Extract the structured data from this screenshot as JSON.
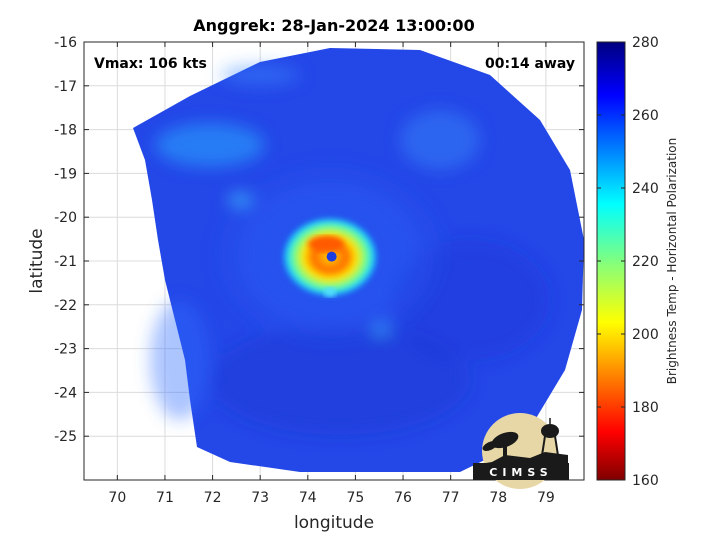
{
  "chart_data": {
    "type": "heatmap",
    "title": "Anggrek: 28-Jan-2024 13:00:00",
    "xlabel": "longitude",
    "ylabel": "latitude",
    "xlim": [
      69.3,
      79.8
    ],
    "ylim": [
      -26.0,
      -16.0
    ],
    "x_ticks": [
      70,
      71,
      72,
      73,
      74,
      75,
      76,
      77,
      78,
      79
    ],
    "y_ticks": [
      -16,
      -17,
      -18,
      -19,
      -20,
      -21,
      -22,
      -23,
      -24,
      -25
    ],
    "grid": true,
    "annotations": {
      "top_left": "Vmax: 106 kts",
      "top_right": "00:14 away"
    },
    "storm_center": {
      "lon": 74.5,
      "lat": -20.9
    },
    "colorbar": {
      "label": "Brightness Temp - Horizontal Polarization",
      "min": 160,
      "max": 280,
      "ticks": [
        160,
        180,
        200,
        220,
        240,
        260,
        280
      ],
      "colormap": "jet"
    },
    "field_features": {
      "background_value": 262,
      "eyewall_value": 190,
      "eyewall_min_value": 176,
      "outer_band_value": 245
    }
  },
  "logo": {
    "text": "CIMSS"
  },
  "colors": {
    "background": "#ffffff",
    "swath_base": "#2447e8",
    "axis": "#262626",
    "grid": "#dcdcdc"
  }
}
